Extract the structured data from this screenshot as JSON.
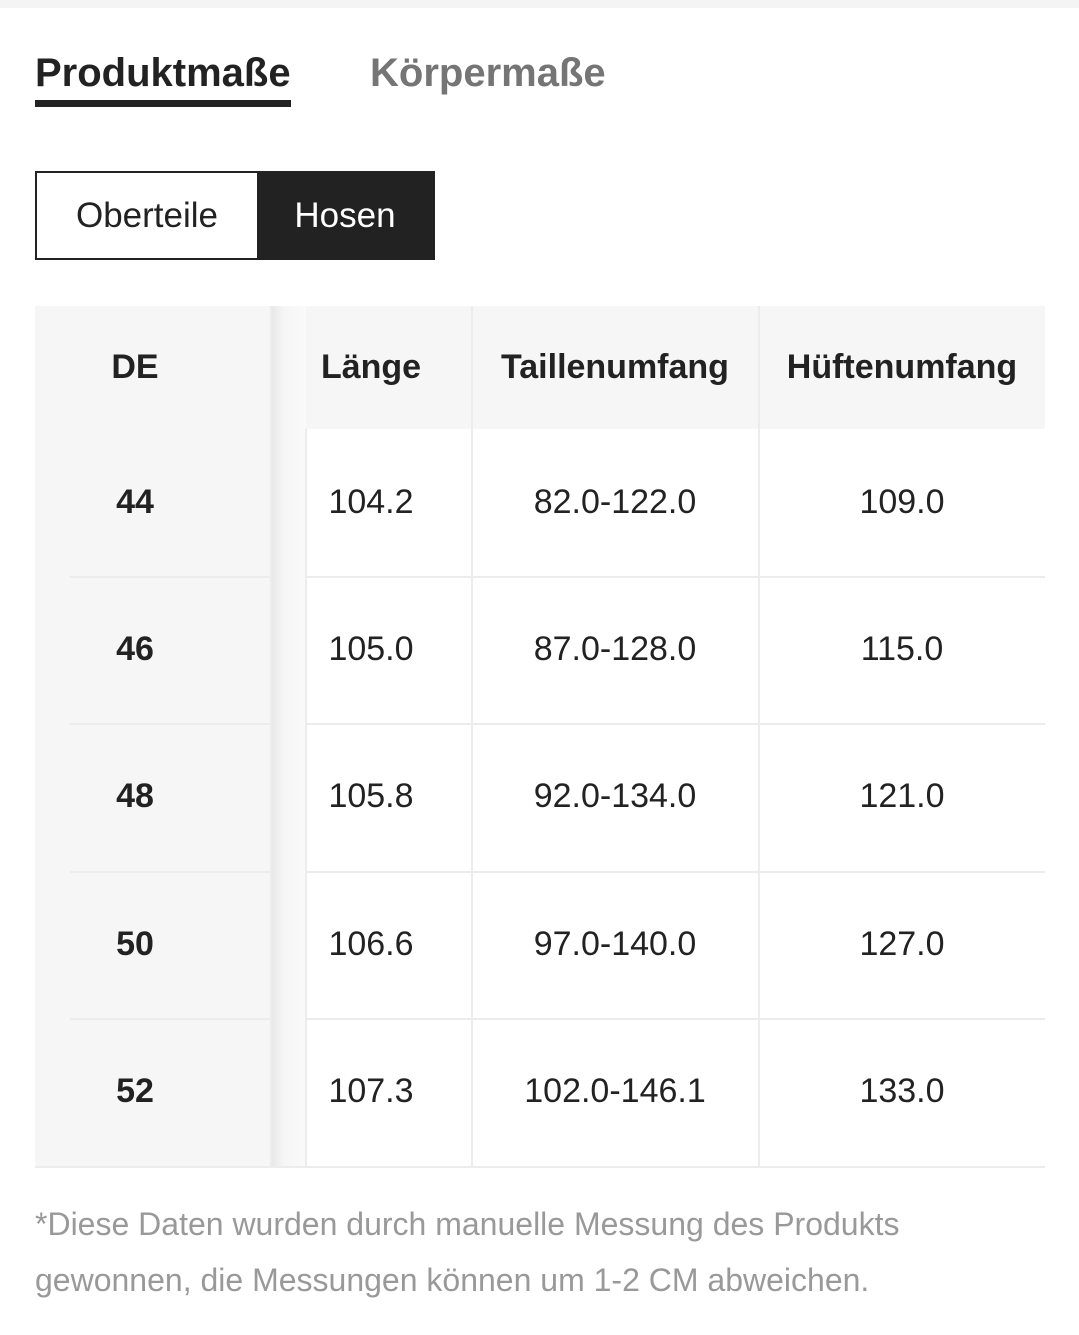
{
  "tabs": {
    "active": "Produktmaße",
    "inactive": "Körpermaße"
  },
  "categories": {
    "tops": "Oberteile",
    "pants": "Hosen",
    "selected": "Hosen"
  },
  "table": {
    "headers": [
      "DE",
      "Länge",
      "Taillenumfang",
      "Hüftenumfang"
    ],
    "rows": [
      [
        "44",
        "104.2",
        "82.0-122.0",
        "109.0"
      ],
      [
        "46",
        "105.0",
        "87.0-128.0",
        "115.0"
      ],
      [
        "48",
        "105.8",
        "92.0-134.0",
        "121.0"
      ],
      [
        "50",
        "106.6",
        "97.0-140.0",
        "127.0"
      ],
      [
        "52",
        "107.3",
        "102.0-146.1",
        "133.0"
      ]
    ]
  },
  "note": "*Diese Daten wurden durch manuelle Messung des Produkts gewonnen, die Messungen können um 1-2 CM abweichen.",
  "colors": {
    "text": "#222222",
    "inactive_tab": "#757575",
    "note": "#999999",
    "table_bg": "#f6f6f6"
  }
}
